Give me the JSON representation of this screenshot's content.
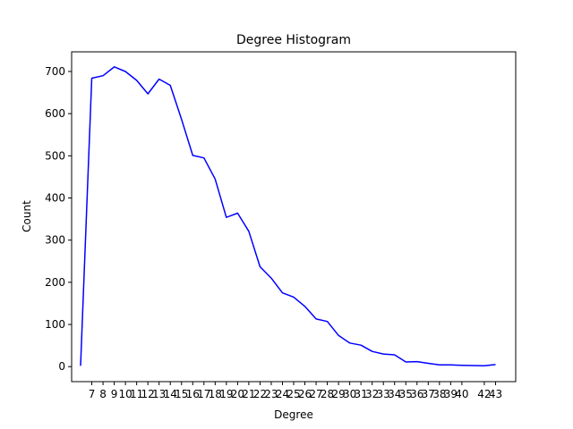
{
  "chart_data": {
    "type": "line",
    "title": "Degree Histogram",
    "xlabel": "Degree",
    "ylabel": "Count",
    "xlim": [
      5.2,
      44.8
    ],
    "ylim": [
      -35.55,
      746.55
    ],
    "grid": false,
    "series_color": "#0000ff",
    "x_ticks": [
      7,
      8,
      9,
      10,
      11,
      12,
      13,
      14,
      15,
      16,
      17,
      18,
      19,
      20,
      21,
      22,
      23,
      24,
      25,
      26,
      27,
      28,
      29,
      30,
      31,
      32,
      33,
      34,
      35,
      36,
      37,
      38,
      39,
      40,
      42,
      43
    ],
    "y_ticks": [
      0,
      100,
      200,
      300,
      400,
      500,
      600,
      700
    ],
    "series": [
      {
        "x": [
          6,
          7,
          8,
          9,
          10,
          11,
          12,
          13,
          14,
          15,
          16,
          17,
          18,
          19,
          20,
          21,
          22,
          23,
          24,
          25,
          26,
          27,
          28,
          29,
          30,
          31,
          32,
          33,
          34,
          35,
          36,
          37,
          38,
          39,
          40,
          42,
          43
        ],
        "y": [
          2,
          684,
          690,
          711,
          700,
          679,
          647,
          682,
          667,
          587,
          501,
          495,
          445,
          354,
          364,
          321,
          237,
          210,
          175,
          165,
          143,
          113,
          107,
          74,
          56,
          51,
          36,
          30,
          28,
          11,
          12,
          8,
          4,
          4,
          3,
          2,
          5
        ]
      }
    ]
  }
}
